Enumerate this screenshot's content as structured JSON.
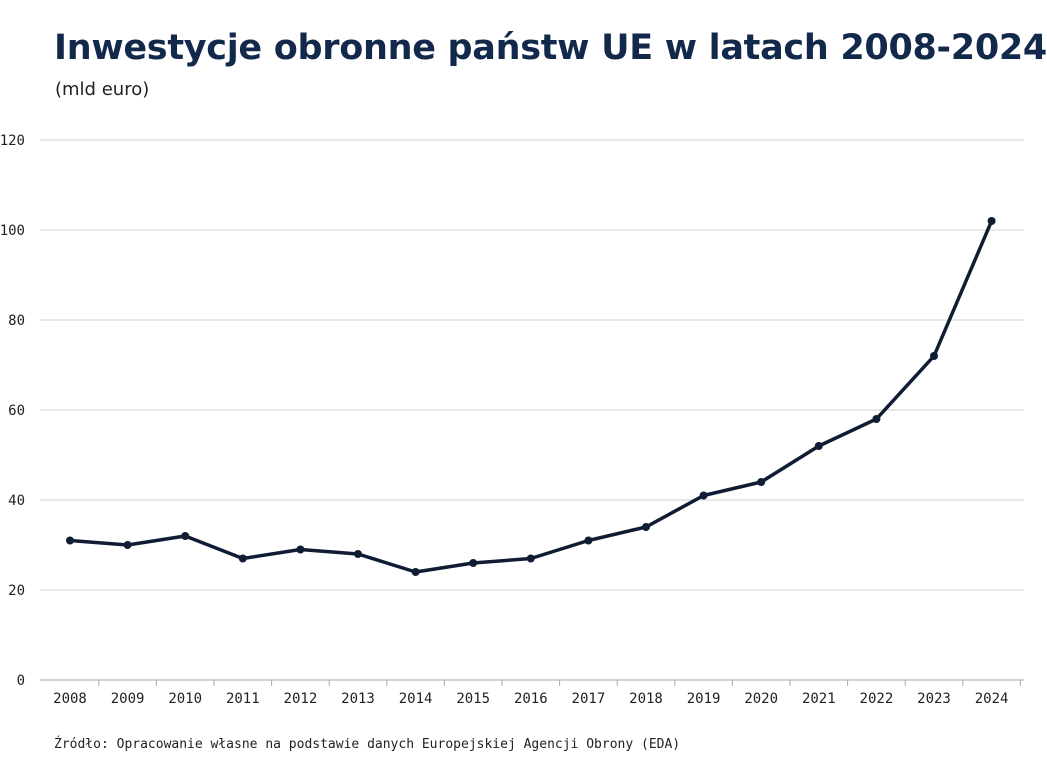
{
  "chart_data": {
    "type": "line",
    "title": "Inwestycje obronne państw UE w latach 2008-2024",
    "subtitle": "(mld euro)",
    "xlabel": "",
    "ylabel": "",
    "x": [
      "2008",
      "2009",
      "2010",
      "2011",
      "2012",
      "2013",
      "2014",
      "2015",
      "2016",
      "2017",
      "2018",
      "2019",
      "2020",
      "2021",
      "2022",
      "2023",
      "2024"
    ],
    "series": [
      {
        "values": [
          31,
          30,
          32,
          27,
          29,
          28,
          24,
          26,
          27,
          31,
          34,
          41,
          44,
          52,
          58,
          72,
          102
        ]
      }
    ],
    "ylim": [
      0,
      120
    ],
    "yticks": [
      0,
      20,
      40,
      60,
      80,
      100,
      120
    ],
    "grid": true,
    "legend": "none",
    "line_color": "#0f1c33",
    "grid_color": "#d0d0d0",
    "source": "Źródło: Opracowanie własne na podstawie danych Europejskiej Agencji Obrony (EDA)"
  }
}
